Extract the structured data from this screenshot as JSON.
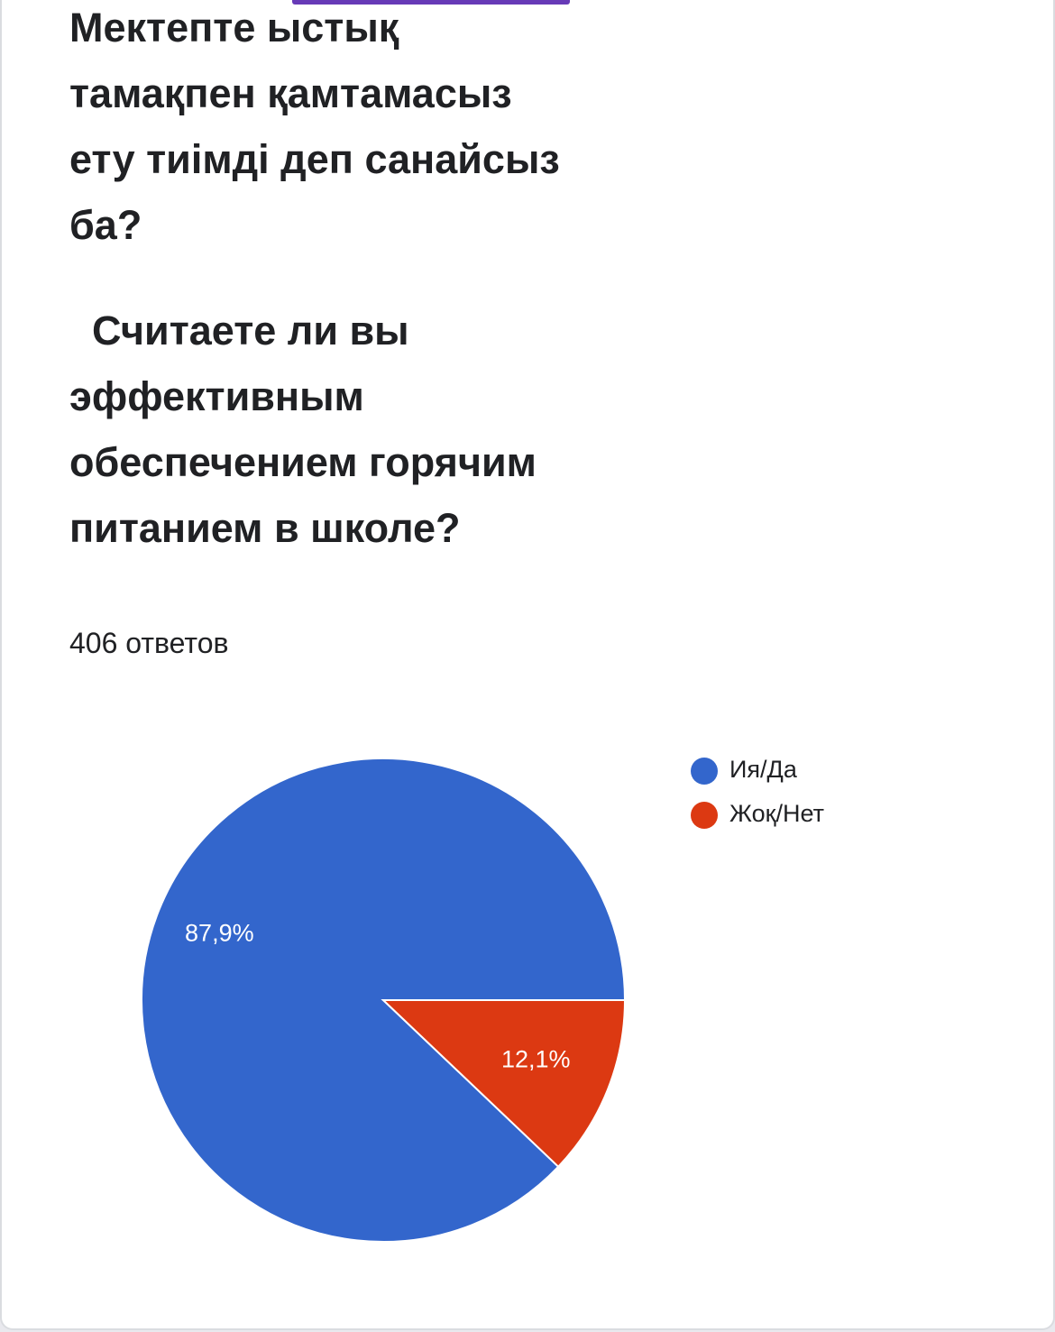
{
  "question": {
    "kz_lines": [
      "Мектепте ыстық",
      "тамақпен қамтамасыз",
      "ету тиімді деп санайсыз",
      "ба?"
    ],
    "ru_lines": [
      "  Считаете ли вы",
      "эффективным",
      "обеспечением горячим",
      "питанием в школе?"
    ]
  },
  "responses_label": "406 ответов",
  "colors": {
    "accent": "#673ab7",
    "yes": "#3366cc",
    "no": "#dc3912",
    "text": "#202124"
  },
  "chart_data": {
    "type": "pie",
    "title": "",
    "slices": [
      {
        "name": "Ия/Да",
        "value": 87.9,
        "label": "87,9%",
        "color": "#3366cc"
      },
      {
        "name": "Жоқ/Нет",
        "value": 12.1,
        "label": "12,1%",
        "color": "#dc3912"
      }
    ],
    "start_angle_deg": 0,
    "direction": "counterclockwise",
    "legend_position": "top-right"
  }
}
